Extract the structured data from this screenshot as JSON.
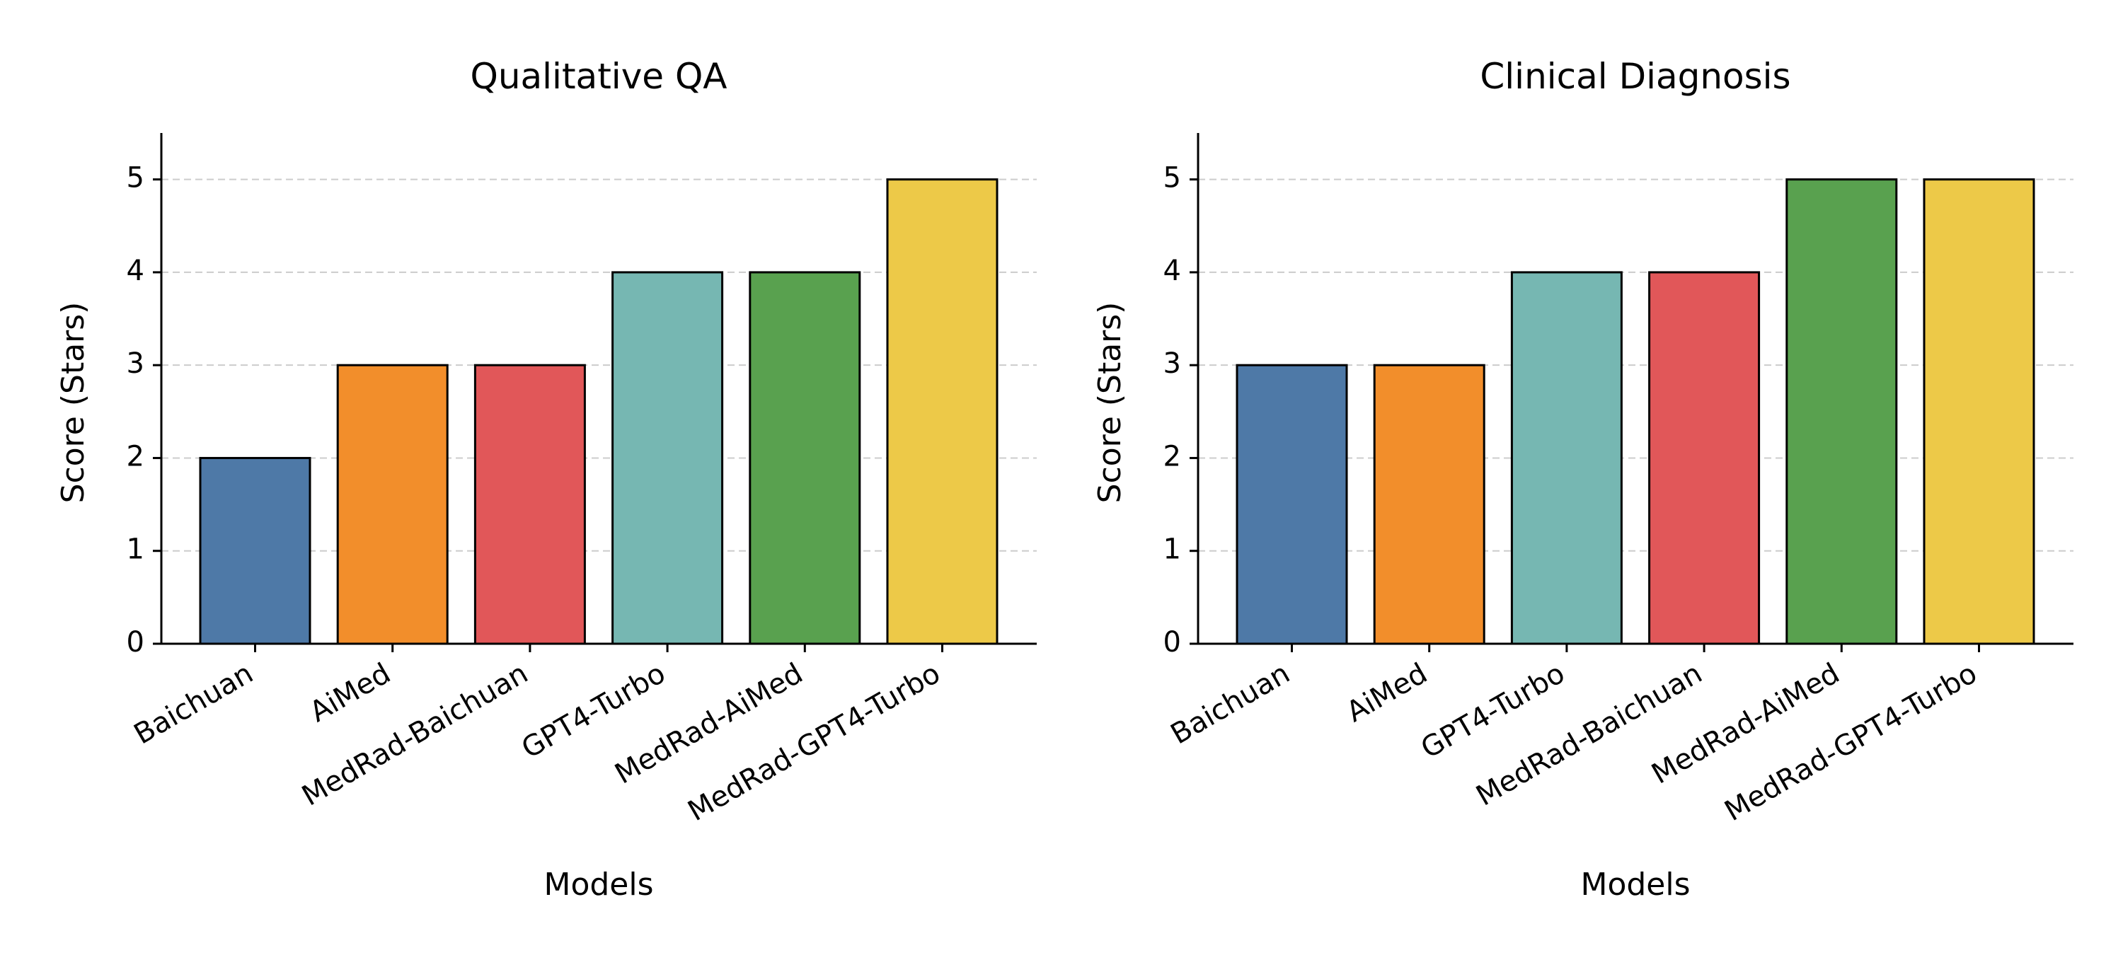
{
  "chart_data": [
    {
      "type": "bar",
      "title": "Qualitative QA",
      "xlabel": "Models",
      "ylabel": "Score (Stars)",
      "categories": [
        "Baichuan",
        "AiMed",
        "MedRad-Baichuan",
        "GPT4-Turbo",
        "MedRad-AiMed",
        "MedRad-GPT4-Turbo"
      ],
      "values": [
        2,
        3,
        3,
        4,
        4,
        5
      ],
      "colors": [
        "#4e79a7",
        "#f28e2b",
        "#e15759",
        "#76b7b2",
        "#59a14f",
        "#edc948"
      ],
      "ylim": [
        0,
        5.5
      ],
      "yticks": [
        0,
        1,
        2,
        3,
        4,
        5
      ],
      "grid": "horizontal-dashed",
      "legend": "none"
    },
    {
      "type": "bar",
      "title": "Clinical Diagnosis",
      "xlabel": "Models",
      "ylabel": "Score (Stars)",
      "categories": [
        "Baichuan",
        "AiMed",
        "GPT4-Turbo",
        "MedRad-Baichuan",
        "MedRad-AiMed",
        "MedRad-GPT4-Turbo"
      ],
      "values": [
        3,
        3,
        4,
        4,
        5,
        5
      ],
      "colors": [
        "#4e79a7",
        "#f28e2b",
        "#76b7b2",
        "#e15759",
        "#59a14f",
        "#edc948"
      ],
      "ylim": [
        0,
        5.5
      ],
      "yticks": [
        0,
        1,
        2,
        3,
        4,
        5
      ],
      "grid": "horizontal-dashed",
      "legend": "none"
    }
  ]
}
